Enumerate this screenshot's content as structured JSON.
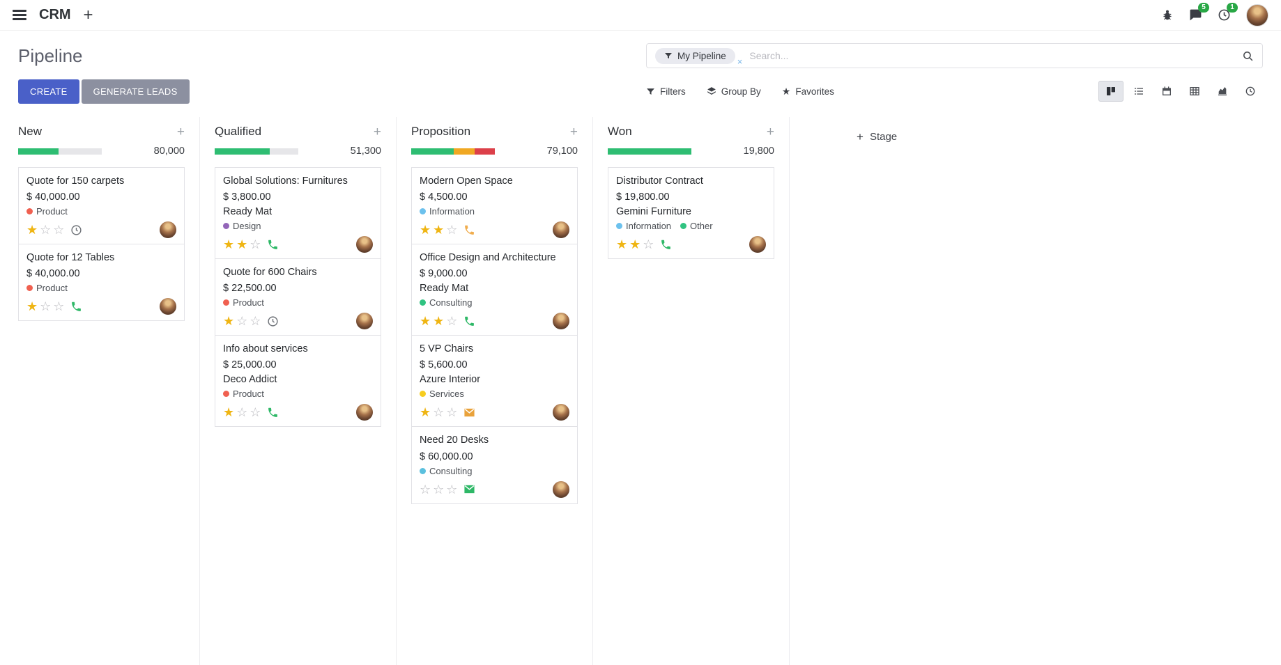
{
  "colors": {
    "primary": "#4a60c8",
    "badge": "#28a745",
    "success": "#2ebd72",
    "warning": "#f0a823",
    "danger": "#dc4049"
  },
  "icons": {
    "hamburger": "menu",
    "plus": "+",
    "star_filled": "★",
    "star_empty": "☆",
    "favorites_star": "★",
    "facet_remove": "×"
  },
  "navbar": {
    "app_name": "CRM",
    "systray": {
      "messages_badge": "5",
      "activities_badge": "1"
    }
  },
  "control_panel": {
    "title": "Pipeline",
    "create_label": "CREATE",
    "generate_leads_label": "GENERATE LEADS",
    "search": {
      "facet_label": "My Pipeline",
      "placeholder": "Search..."
    },
    "menus": {
      "filters": "Filters",
      "group_by": "Group By",
      "favorites": "Favorites"
    }
  },
  "board": {
    "stage_adder_label": "Stage",
    "columns": [
      {
        "title": "New",
        "value": "80,000",
        "progress": [
          {
            "color": "#2ebd72",
            "pct": 48
          },
          {
            "color": "#e6e6e9",
            "pct": 52
          }
        ],
        "cards": [
          {
            "title": "Quote for 150 carpets",
            "amount": "$ 40,000.00",
            "tags": [
              {
                "label": "Product",
                "color": "#f06050"
              }
            ],
            "stars": 1,
            "activity": {
              "icon": "clock",
              "color": "#6d7177"
            }
          },
          {
            "title": "Quote for 12 Tables",
            "amount": "$ 40,000.00",
            "tags": [
              {
                "label": "Product",
                "color": "#f06050"
              }
            ],
            "stars": 1,
            "activity": {
              "icon": "phone",
              "color": "#2eb867"
            }
          }
        ]
      },
      {
        "title": "Qualified",
        "value": "51,300",
        "progress": [
          {
            "color": "#2ebd72",
            "pct": 66
          },
          {
            "color": "#e6e6e9",
            "pct": 34
          }
        ],
        "cards": [
          {
            "title": "Global Solutions: Furnitures",
            "amount": "$ 3,800.00",
            "partner": "Ready Mat",
            "tags": [
              {
                "label": "Design",
                "color": "#9365b8"
              }
            ],
            "stars": 2,
            "activity": {
              "icon": "phone",
              "color": "#2eb867"
            }
          },
          {
            "title": "Quote for 600 Chairs",
            "amount": "$ 22,500.00",
            "tags": [
              {
                "label": "Product",
                "color": "#f06050"
              }
            ],
            "stars": 1,
            "activity": {
              "icon": "clock",
              "color": "#6d7177"
            }
          },
          {
            "title": "Info about services",
            "amount": "$ 25,000.00",
            "partner": "Deco Addict",
            "tags": [
              {
                "label": "Product",
                "color": "#f06050"
              }
            ],
            "stars": 1,
            "activity": {
              "icon": "phone",
              "color": "#2eb867"
            }
          }
        ]
      },
      {
        "title": "Proposition",
        "value": "79,100",
        "progress": [
          {
            "color": "#2ebd72",
            "pct": 51
          },
          {
            "color": "#f0a823",
            "pct": 25
          },
          {
            "color": "#dc4049",
            "pct": 24
          }
        ],
        "cards": [
          {
            "title": "Modern Open Space",
            "amount": "$ 4,500.00",
            "tags": [
              {
                "label": "Information",
                "color": "#6cc1ed"
              }
            ],
            "stars": 2,
            "activity": {
              "icon": "phone",
              "color": "#f0ad4e"
            }
          },
          {
            "title": "Office Design and Architecture",
            "amount": "$ 9,000.00",
            "partner": "Ready Mat",
            "tags": [
              {
                "label": "Consulting",
                "color": "#30c381"
              }
            ],
            "stars": 2,
            "activity": {
              "icon": "phone",
              "color": "#2eb867"
            }
          },
          {
            "title": "5 VP Chairs",
            "amount": "$ 5,600.00",
            "partner": "Azure Interior",
            "tags": [
              {
                "label": "Services",
                "color": "#f7cd1f"
              }
            ],
            "stars": 1,
            "activity": {
              "icon": "envelope",
              "color": "#e9a23b"
            }
          },
          {
            "title": "Need 20 Desks",
            "amount": "$ 60,000.00",
            "tags": [
              {
                "label": "Consulting",
                "color": "#5bc0de"
              }
            ],
            "stars": 0,
            "activity": {
              "icon": "envelope",
              "color": "#2eb867"
            }
          }
        ]
      },
      {
        "title": "Won",
        "value": "19,800",
        "progress": [
          {
            "color": "#2ebd72",
            "pct": 100
          }
        ],
        "cards": [
          {
            "title": "Distributor Contract",
            "amount": "$ 19,800.00",
            "partner": "Gemini Furniture",
            "tags": [
              {
                "label": "Information",
                "color": "#6cc1ed"
              },
              {
                "label": "Other",
                "color": "#30c381"
              }
            ],
            "stars": 2,
            "activity": {
              "icon": "phone",
              "color": "#2eb867"
            }
          }
        ]
      }
    ]
  }
}
